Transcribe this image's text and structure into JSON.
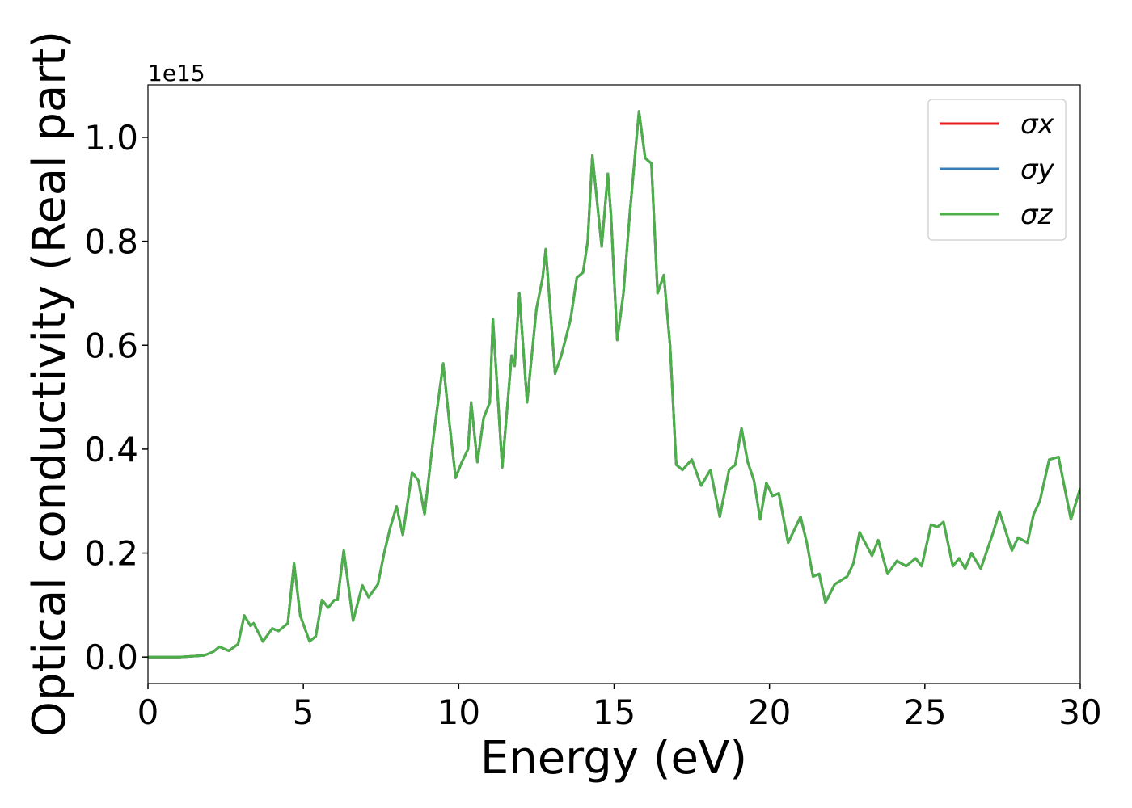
{
  "chart_data": {
    "type": "line",
    "xlabel": "Energy (eV)",
    "ylabel": "Optical conductivity (Real part)",
    "y_offset_label": "1e15",
    "x": [
      0,
      1,
      1.8,
      2.1,
      2.3,
      2.6,
      2.9,
      3.1,
      3.3,
      3.4,
      3.7,
      4.0,
      4.2,
      4.5,
      4.7,
      4.9,
      5.2,
      5.4,
      5.6,
      5.8,
      6.0,
      6.1,
      6.3,
      6.6,
      6.9,
      7.1,
      7.4,
      7.6,
      7.8,
      8.0,
      8.2,
      8.5,
      8.7,
      8.9,
      9.2,
      9.5,
      9.7,
      9.9,
      10.1,
      10.3,
      10.4,
      10.6,
      10.8,
      11.0,
      11.1,
      11.4,
      11.7,
      11.8,
      11.95,
      12.2,
      12.5,
      12.7,
      12.8,
      13.1,
      13.3,
      13.6,
      13.8,
      14.0,
      14.15,
      14.3,
      14.6,
      14.8,
      14.9,
      15.1,
      15.3,
      15.5,
      15.8,
      16.0,
      16.2,
      16.4,
      16.6,
      16.8,
      17.0,
      17.2,
      17.5,
      17.8,
      18.1,
      18.4,
      18.7,
      18.9,
      19.1,
      19.3,
      19.5,
      19.7,
      19.9,
      20.1,
      20.3,
      20.6,
      21.0,
      21.2,
      21.4,
      21.6,
      21.8,
      22.1,
      22.5,
      22.7,
      22.9,
      23.3,
      23.5,
      23.8,
      24.1,
      24.4,
      24.7,
      24.9,
      25.2,
      25.4,
      25.6,
      25.9,
      26.1,
      26.3,
      26.5,
      26.8,
      27.2,
      27.4,
      27.8,
      28.0,
      28.3,
      28.5,
      28.7,
      29.0,
      29.3,
      29.7,
      30.0
    ],
    "series": [
      {
        "name": "σx",
        "color": "#e41a1c",
        "values": [
          0,
          0,
          0.003,
          0.01,
          0.02,
          0.012,
          0.025,
          0.08,
          0.06,
          0.065,
          0.03,
          0.055,
          0.05,
          0.065,
          0.18,
          0.08,
          0.03,
          0.04,
          0.11,
          0.095,
          0.11,
          0.11,
          0.205,
          0.07,
          0.138,
          0.115,
          0.14,
          0.2,
          0.25,
          0.29,
          0.235,
          0.355,
          0.34,
          0.275,
          0.43,
          0.565,
          0.45,
          0.345,
          0.375,
          0.4,
          0.49,
          0.375,
          0.46,
          0.49,
          0.65,
          0.365,
          0.58,
          0.56,
          0.7,
          0.49,
          0.67,
          0.73,
          0.785,
          0.545,
          0.58,
          0.65,
          0.73,
          0.74,
          0.8,
          0.965,
          0.79,
          0.93,
          0.85,
          0.61,
          0.7,
          0.85,
          1.05,
          0.96,
          0.95,
          0.7,
          0.735,
          0.6,
          0.37,
          0.36,
          0.38,
          0.33,
          0.36,
          0.27,
          0.36,
          0.37,
          0.44,
          0.375,
          0.34,
          0.265,
          0.335,
          0.31,
          0.315,
          0.22,
          0.27,
          0.22,
          0.155,
          0.16,
          0.105,
          0.14,
          0.155,
          0.18,
          0.24,
          0.195,
          0.225,
          0.16,
          0.185,
          0.175,
          0.19,
          0.175,
          0.255,
          0.25,
          0.26,
          0.175,
          0.19,
          0.17,
          0.2,
          0.17,
          0.24,
          0.28,
          0.205,
          0.23,
          0.22,
          0.275,
          0.3,
          0.38,
          0.385,
          0.265,
          0.325
        ]
      },
      {
        "name": "σy",
        "color": "#377eb8",
        "values": [
          0,
          0,
          0.003,
          0.01,
          0.02,
          0.012,
          0.025,
          0.08,
          0.06,
          0.065,
          0.03,
          0.055,
          0.05,
          0.065,
          0.18,
          0.08,
          0.03,
          0.04,
          0.11,
          0.095,
          0.11,
          0.11,
          0.205,
          0.07,
          0.138,
          0.115,
          0.14,
          0.2,
          0.25,
          0.29,
          0.235,
          0.355,
          0.34,
          0.275,
          0.43,
          0.565,
          0.45,
          0.345,
          0.375,
          0.4,
          0.49,
          0.375,
          0.46,
          0.49,
          0.65,
          0.365,
          0.58,
          0.56,
          0.7,
          0.49,
          0.67,
          0.73,
          0.785,
          0.545,
          0.58,
          0.65,
          0.73,
          0.74,
          0.8,
          0.965,
          0.79,
          0.93,
          0.85,
          0.61,
          0.7,
          0.85,
          1.05,
          0.96,
          0.95,
          0.7,
          0.735,
          0.6,
          0.37,
          0.36,
          0.38,
          0.33,
          0.36,
          0.27,
          0.36,
          0.37,
          0.44,
          0.375,
          0.34,
          0.265,
          0.335,
          0.31,
          0.315,
          0.22,
          0.27,
          0.22,
          0.155,
          0.16,
          0.105,
          0.14,
          0.155,
          0.18,
          0.24,
          0.195,
          0.225,
          0.16,
          0.185,
          0.175,
          0.19,
          0.175,
          0.255,
          0.25,
          0.26,
          0.175,
          0.19,
          0.17,
          0.2,
          0.17,
          0.24,
          0.28,
          0.205,
          0.23,
          0.22,
          0.275,
          0.3,
          0.38,
          0.385,
          0.265,
          0.325
        ]
      },
      {
        "name": "σz",
        "color": "#4daf4a",
        "values": [
          0,
          0,
          0.003,
          0.01,
          0.02,
          0.012,
          0.025,
          0.08,
          0.06,
          0.065,
          0.03,
          0.055,
          0.05,
          0.065,
          0.18,
          0.08,
          0.03,
          0.04,
          0.11,
          0.095,
          0.11,
          0.11,
          0.205,
          0.07,
          0.138,
          0.115,
          0.14,
          0.2,
          0.25,
          0.29,
          0.235,
          0.355,
          0.34,
          0.275,
          0.43,
          0.565,
          0.45,
          0.345,
          0.375,
          0.4,
          0.49,
          0.375,
          0.46,
          0.49,
          0.65,
          0.365,
          0.58,
          0.56,
          0.7,
          0.49,
          0.67,
          0.73,
          0.785,
          0.545,
          0.58,
          0.65,
          0.73,
          0.74,
          0.8,
          0.965,
          0.79,
          0.93,
          0.85,
          0.61,
          0.7,
          0.85,
          1.05,
          0.96,
          0.95,
          0.7,
          0.735,
          0.6,
          0.37,
          0.36,
          0.38,
          0.33,
          0.36,
          0.27,
          0.36,
          0.37,
          0.44,
          0.375,
          0.34,
          0.265,
          0.335,
          0.31,
          0.315,
          0.22,
          0.27,
          0.22,
          0.155,
          0.16,
          0.105,
          0.14,
          0.155,
          0.18,
          0.24,
          0.195,
          0.225,
          0.16,
          0.185,
          0.175,
          0.19,
          0.175,
          0.255,
          0.25,
          0.26,
          0.175,
          0.19,
          0.17,
          0.2,
          0.17,
          0.24,
          0.28,
          0.205,
          0.23,
          0.22,
          0.275,
          0.3,
          0.38,
          0.385,
          0.265,
          0.325
        ]
      }
    ],
    "xlim": [
      0,
      30
    ],
    "xticks": [
      0,
      5,
      10,
      15,
      20,
      25,
      30
    ],
    "ylim": [
      -0.051,
      1.101
    ],
    "yticks": [
      {
        "value": 0,
        "label": "0.0"
      },
      0.2,
      0.4,
      0.6,
      0.8,
      {
        "value": 1,
        "label": "1.0"
      }
    ],
    "grid": false,
    "legend": "upper right"
  }
}
